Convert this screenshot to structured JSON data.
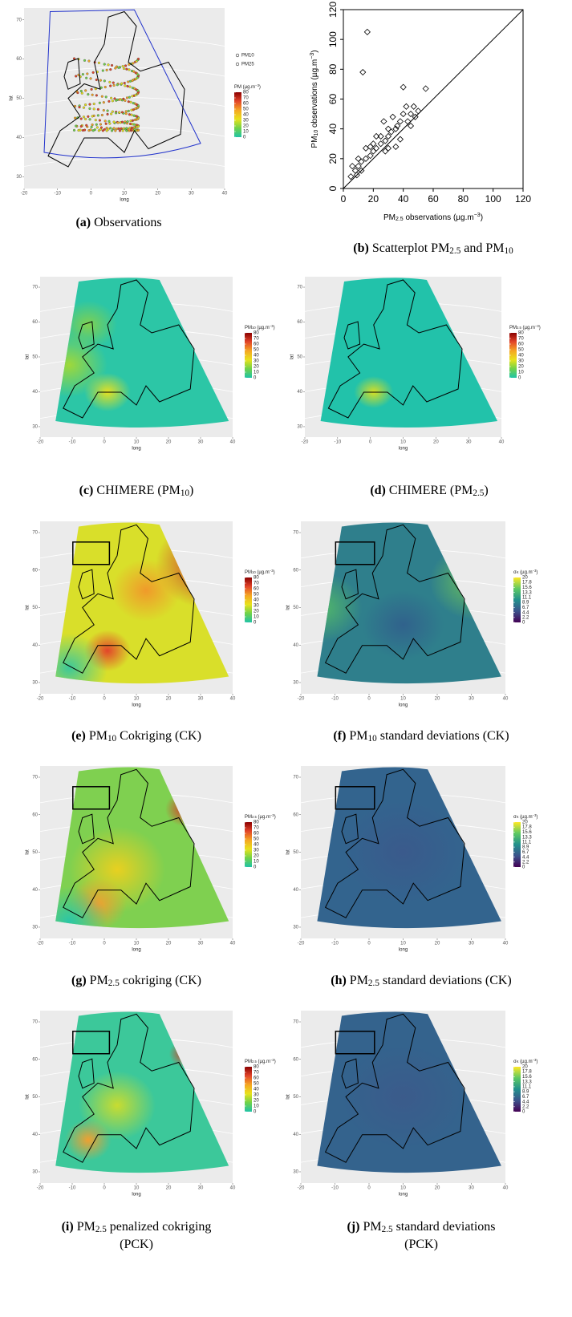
{
  "panels": [
    {
      "type": "map",
      "caption": {
        "label": "(a)",
        "lines": [
          [
            "Observations"
          ]
        ]
      },
      "xlabel": "long",
      "ylabel": "lat",
      "xlim": [
        -20,
        40
      ],
      "ylim": [
        27,
        73
      ],
      "xticks": [
        -20,
        -10,
        0,
        10,
        20,
        30,
        40
      ],
      "yticks": [
        30,
        40,
        50,
        60,
        70
      ],
      "points_legend": [
        "PM10",
        "PM25"
      ],
      "legend": {
        "title": [
          "PM (µg.m",
          {
            "sup": "−3"
          },
          ")"
        ],
        "lim": [
          0,
          80
        ],
        "ticks": [
          80,
          70,
          60,
          50,
          40,
          30,
          20,
          10,
          0
        ],
        "colors": [
          "#1fc3a7",
          "#6fd24a",
          "#e8e21c",
          "#f5a623",
          "#e2452a",
          "#8b0000"
        ]
      }
    },
    {
      "type": "scatter",
      "caption": {
        "label": "(b)",
        "lines": [
          [
            "Scatterplot PM",
            {
              "sub": "2.5"
            },
            " and PM",
            {
              "sub": "10"
            }
          ]
        ]
      },
      "xlabel": [
        "PM",
        {
          "sub": "2.5"
        },
        " observations (µg.m",
        {
          "sup": "−3"
        },
        ")"
      ],
      "ylabel": [
        "PM",
        {
          "sub": "10"
        },
        " observations (µg.m",
        {
          "sup": "−3"
        },
        ")"
      ],
      "xlim": [
        0,
        120
      ],
      "ylim": [
        0,
        120
      ],
      "xticks": [
        0,
        20,
        40,
        60,
        80,
        100,
        120
      ],
      "yticks": [
        0,
        20,
        40,
        60,
        80,
        100,
        120
      ],
      "x": [
        5,
        8,
        10,
        12,
        15,
        18,
        20,
        22,
        25,
        28,
        30,
        32,
        35,
        38,
        40,
        42,
        45,
        48,
        50,
        55,
        40,
        30,
        25,
        20,
        15,
        10,
        6,
        13,
        16,
        35,
        38,
        30,
        28,
        45,
        33,
        27,
        22,
        18,
        36,
        43,
        47,
        12,
        9
      ],
      "y": [
        8,
        12,
        15,
        18,
        20,
        22,
        25,
        27,
        30,
        32,
        35,
        38,
        40,
        45,
        50,
        55,
        50,
        48,
        52,
        67,
        68,
        40,
        35,
        30,
        27,
        20,
        15,
        78,
        105,
        28,
        33,
        27,
        25,
        42,
        48,
        45,
        35,
        28,
        42,
        45,
        55,
        12,
        9
      ]
    },
    {
      "type": "map",
      "caption": {
        "label": "(c)",
        "lines": [
          [
            "CHIMERE (PM",
            {
              "sub": "10"
            },
            ")"
          ]
        ]
      },
      "xlabel": "long",
      "ylabel": "lat",
      "xlim": [
        -20,
        40
      ],
      "ylim": [
        27,
        73
      ],
      "xticks": [
        -20,
        -10,
        0,
        10,
        20,
        30,
        40
      ],
      "yticks": [
        30,
        40,
        50,
        60,
        70
      ],
      "legend": {
        "title": [
          "PM",
          {
            "sub": "10"
          },
          " (µg.m",
          {
            "sup": "−3"
          },
          ")"
        ],
        "lim": [
          0,
          80
        ],
        "ticks": [
          80,
          70,
          60,
          50,
          40,
          30,
          20,
          10,
          0
        ],
        "colors": [
          "#1fc3a7",
          "#6fd24a",
          "#e8e21c",
          "#f5a623",
          "#e2452a",
          "#8b0000"
        ]
      }
    },
    {
      "type": "map",
      "caption": {
        "label": "(d)",
        "lines": [
          [
            "CHIMERE (PM",
            {
              "sub": "2.5"
            },
            ")"
          ]
        ]
      },
      "xlabel": "long",
      "ylabel": "lat",
      "xlim": [
        -20,
        40
      ],
      "ylim": [
        27,
        73
      ],
      "xticks": [
        -20,
        -10,
        0,
        10,
        20,
        30,
        40
      ],
      "yticks": [
        30,
        40,
        50,
        60,
        70
      ],
      "legend": {
        "title": [
          "PM",
          {
            "sub": "2.5"
          },
          " (µg.m",
          {
            "sup": "−3"
          },
          ")"
        ],
        "lim": [
          0,
          80
        ],
        "ticks": [
          80,
          70,
          60,
          50,
          40,
          30,
          20,
          10,
          0
        ],
        "colors": [
          "#1fc3a7",
          "#6fd24a",
          "#e8e21c",
          "#f5a623",
          "#e2452a",
          "#8b0000"
        ]
      }
    },
    {
      "type": "map",
      "caption": {
        "label": "(e)",
        "lines": [
          [
            "PM",
            {
              "sub": "10"
            },
            " Cokriging (CK)"
          ]
        ]
      },
      "xlabel": "long",
      "ylabel": "lat",
      "xlim": [
        -20,
        40
      ],
      "ylim": [
        27,
        73
      ],
      "xticks": [
        -20,
        -10,
        0,
        10,
        20,
        30,
        40
      ],
      "yticks": [
        30,
        40,
        50,
        60,
        70
      ],
      "legend": {
        "title": [
          "PM",
          {
            "sub": "10"
          },
          " (µg.m",
          {
            "sup": "−3"
          },
          ")"
        ],
        "lim": [
          0,
          80
        ],
        "ticks": [
          80,
          70,
          60,
          50,
          40,
          30,
          20,
          10,
          0
        ],
        "colors": [
          "#1fc3a7",
          "#6fd24a",
          "#e8e21c",
          "#f5a623",
          "#e2452a",
          "#8b0000"
        ]
      }
    },
    {
      "type": "map",
      "caption": {
        "label": "(f)",
        "lines": [
          [
            "PM",
            {
              "sub": "10"
            },
            " standard deviations (CK)"
          ]
        ]
      },
      "xlabel": "long",
      "ylabel": "lat",
      "xlim": [
        -20,
        40
      ],
      "ylim": [
        27,
        73
      ],
      "xticks": [
        -20,
        -10,
        0,
        10,
        20,
        30,
        40
      ],
      "yticks": [
        30,
        40,
        50,
        60,
        70
      ],
      "legend": {
        "title": [
          "σ",
          {
            "sub": "K"
          },
          " (µg.m",
          {
            "sup": "−3"
          },
          ")"
        ],
        "lim": [
          0,
          20
        ],
        "ticks": [
          20,
          17.8,
          15.6,
          13.3,
          11.1,
          8.9,
          6.7,
          4.4,
          2.2,
          0
        ],
        "colors": [
          "#440154",
          "#3b528b",
          "#21908c",
          "#5dc963",
          "#fde725"
        ]
      }
    },
    {
      "type": "map",
      "caption": {
        "label": "(g)",
        "lines": [
          [
            "PM",
            {
              "sub": "2.5"
            },
            " cokriging (CK)"
          ]
        ]
      },
      "xlabel": "long",
      "ylabel": "lat",
      "xlim": [
        -20,
        40
      ],
      "ylim": [
        27,
        73
      ],
      "xticks": [
        -20,
        -10,
        0,
        10,
        20,
        30,
        40
      ],
      "yticks": [
        30,
        40,
        50,
        60,
        70
      ],
      "legend": {
        "title": [
          "PM",
          {
            "sub": "2.5"
          },
          " (µg.m",
          {
            "sup": "−3"
          },
          ")"
        ],
        "lim": [
          0,
          80
        ],
        "ticks": [
          80,
          70,
          60,
          50,
          40,
          30,
          20,
          10,
          0
        ],
        "colors": [
          "#1fc3a7",
          "#6fd24a",
          "#e8e21c",
          "#f5a623",
          "#e2452a",
          "#8b0000"
        ]
      }
    },
    {
      "type": "map",
      "caption": {
        "label": "(h)",
        "lines": [
          [
            "PM",
            {
              "sub": "2.5"
            },
            " standard deviations (CK)"
          ]
        ]
      },
      "xlabel": "long",
      "ylabel": "lat",
      "xlim": [
        -20,
        40
      ],
      "ylim": [
        27,
        73
      ],
      "xticks": [
        -20,
        -10,
        0,
        10,
        20,
        30,
        40
      ],
      "yticks": [
        30,
        40,
        50,
        60,
        70
      ],
      "legend": {
        "title": [
          "σ",
          {
            "sub": "K"
          },
          " (µg.m",
          {
            "sup": "−3"
          },
          ")"
        ],
        "lim": [
          0,
          20
        ],
        "ticks": [
          20,
          17.8,
          15.6,
          13.3,
          11.1,
          8.9,
          6.7,
          4.4,
          2.2,
          0
        ],
        "colors": [
          "#440154",
          "#3b528b",
          "#21908c",
          "#5dc963",
          "#fde725"
        ]
      }
    },
    {
      "type": "map",
      "caption": {
        "label": "(i)",
        "lines": [
          [
            "PM",
            {
              "sub": "2.5"
            },
            " penalized cokriging"
          ],
          [
            "(PCK)"
          ]
        ]
      },
      "xlabel": "long",
      "ylabel": "lat",
      "xlim": [
        -20,
        40
      ],
      "ylim": [
        27,
        73
      ],
      "xticks": [
        -20,
        -10,
        0,
        10,
        20,
        30,
        40
      ],
      "yticks": [
        30,
        40,
        50,
        60,
        70
      ],
      "legend": {
        "title": [
          "PM",
          {
            "sub": "2.5"
          },
          " (µg.m",
          {
            "sup": "−3"
          },
          ")"
        ],
        "lim": [
          0,
          80
        ],
        "ticks": [
          80,
          70,
          60,
          50,
          40,
          30,
          20,
          10,
          0
        ],
        "colors": [
          "#1fc3a7",
          "#6fd24a",
          "#e8e21c",
          "#f5a623",
          "#e2452a",
          "#8b0000"
        ]
      }
    },
    {
      "type": "map",
      "caption": {
        "label": "(j)",
        "lines": [
          [
            "PM",
            {
              "sub": "2.5"
            },
            " standard deviations"
          ],
          [
            "(PCK)"
          ]
        ]
      },
      "xlabel": "long",
      "ylabel": "lat",
      "xlim": [
        -20,
        40
      ],
      "ylim": [
        27,
        73
      ],
      "xticks": [
        -20,
        -10,
        0,
        10,
        20,
        30,
        40
      ],
      "yticks": [
        30,
        40,
        50,
        60,
        70
      ],
      "legend": {
        "title": [
          "σ",
          {
            "sub": "K"
          },
          " (µg.m",
          {
            "sup": "−3"
          },
          ")"
        ],
        "lim": [
          0,
          20
        ],
        "ticks": [
          20,
          17.8,
          15.6,
          13.3,
          11.1,
          8.9,
          6.7,
          4.4,
          2.2,
          0
        ],
        "colors": [
          "#440154",
          "#3b528b",
          "#21908c",
          "#5dc963",
          "#fde725"
        ]
      }
    }
  ]
}
